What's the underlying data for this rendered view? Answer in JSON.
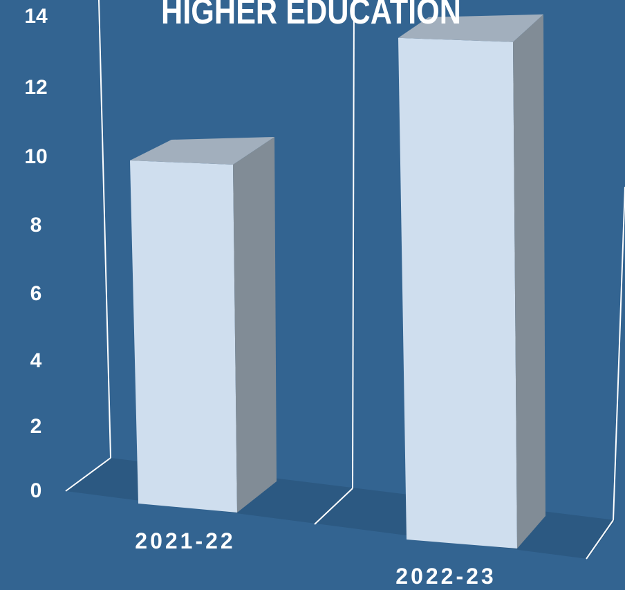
{
  "chart_data": {
    "type": "bar",
    "title": "HIGHER EDUCATION",
    "categories": [
      "2021-22",
      "2022-23"
    ],
    "values": [
      10,
      14
    ],
    "ylim": [
      0,
      14
    ],
    "yticks": [
      "0",
      "2",
      "4",
      "6",
      "8",
      "10",
      "12",
      "14"
    ],
    "grid": false,
    "legend": "none",
    "style": "3d-column",
    "colors": {
      "background": "#336491",
      "floor": "#2c5982",
      "bar_front": "#cfdeee",
      "bar_top": "#a2afbd",
      "bar_side": "#818c96",
      "text": "#ffffff",
      "wall_line": "#ffffff"
    }
  }
}
